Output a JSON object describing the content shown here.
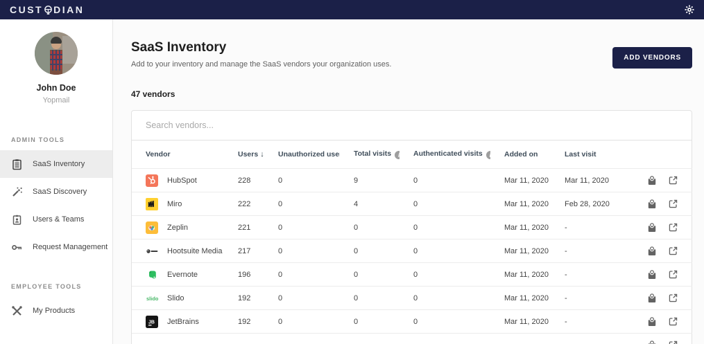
{
  "navbar": {
    "logo_prefix": "CUST",
    "logo_suffix": "DIAN"
  },
  "sidebar": {
    "user": {
      "name": "John Doe",
      "org": "Yopmail"
    },
    "sections": [
      {
        "label": "ADMIN TOOLS",
        "items": [
          {
            "label": "SaaS Inventory"
          },
          {
            "label": "SaaS Discovery"
          },
          {
            "label": "Users & Teams"
          },
          {
            "label": "Request Management"
          }
        ]
      },
      {
        "label": "EMPLOYEE TOOLS",
        "items": [
          {
            "label": "My Products"
          }
        ]
      }
    ]
  },
  "main": {
    "title": "SaaS Inventory",
    "subtitle": "Add to your inventory and manage the SaaS vendors your organization uses.",
    "vendor_count": "47 vendors",
    "add_button_label": "ADD VENDORS",
    "search_placeholder": "Search vendors..."
  },
  "table": {
    "columns": [
      "Vendor",
      "Users",
      "Unauthorized users",
      "Total visits",
      "Authenticated visits",
      "Added on",
      "Last visit"
    ],
    "sorted_by": "Users",
    "rows": [
      {
        "vendor": "HubSpot",
        "logo": "hubspot",
        "users": "228",
        "unauthorized": "0",
        "total_visits": "9",
        "auth_visits": "0",
        "added_on": "Mar 11, 2020",
        "last_visit": "Mar 11, 2020"
      },
      {
        "vendor": "Miro",
        "logo": "miro",
        "users": "222",
        "unauthorized": "0",
        "total_visits": "4",
        "auth_visits": "0",
        "added_on": "Mar 11, 2020",
        "last_visit": "Feb 28, 2020"
      },
      {
        "vendor": "Zeplin",
        "logo": "zeplin",
        "users": "221",
        "unauthorized": "0",
        "total_visits": "0",
        "auth_visits": "0",
        "added_on": "Mar 11, 2020",
        "last_visit": "-"
      },
      {
        "vendor": "Hootsuite Media",
        "logo": "hootsuite",
        "users": "217",
        "unauthorized": "0",
        "total_visits": "0",
        "auth_visits": "0",
        "added_on": "Mar 11, 2020",
        "last_visit": "-"
      },
      {
        "vendor": "Evernote",
        "logo": "evernote",
        "users": "196",
        "unauthorized": "0",
        "total_visits": "0",
        "auth_visits": "0",
        "added_on": "Mar 11, 2020",
        "last_visit": "-"
      },
      {
        "vendor": "Slido",
        "logo": "slido",
        "users": "192",
        "unauthorized": "0",
        "total_visits": "0",
        "auth_visits": "0",
        "added_on": "Mar 11, 2020",
        "last_visit": "-"
      },
      {
        "vendor": "JetBrains",
        "logo": "jetbrains",
        "users": "192",
        "unauthorized": "0",
        "total_visits": "0",
        "auth_visits": "0",
        "added_on": "Mar 11, 2020",
        "last_visit": "-"
      },
      {
        "vendor": "",
        "logo": "",
        "users": "",
        "unauthorized": "",
        "total_visits": "",
        "auth_visits": "",
        "added_on": "",
        "last_visit": ""
      }
    ]
  },
  "colors": {
    "navy": "#1b2048",
    "active_item_bg": "#ededed",
    "border": "#e2e2e2",
    "icon_gray": "#636363"
  }
}
